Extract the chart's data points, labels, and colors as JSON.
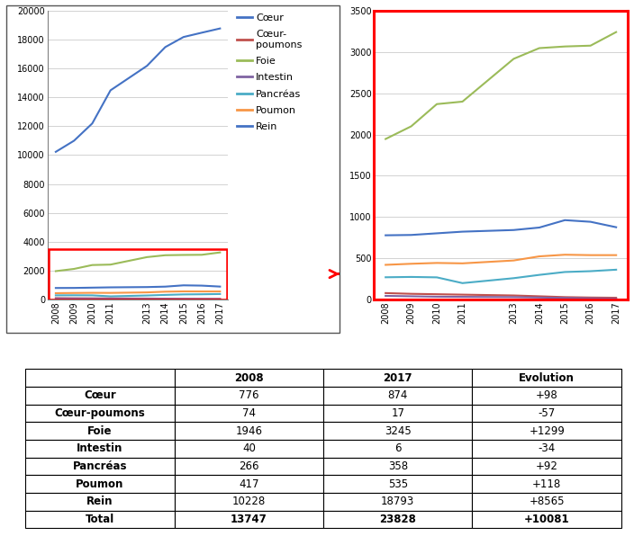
{
  "years": [
    2008,
    2009,
    2010,
    2011,
    2013,
    2014,
    2015,
    2016,
    2017
  ],
  "coeur": [
    776,
    780,
    800,
    820,
    840,
    870,
    960,
    940,
    874
  ],
  "coeur_p": [
    74,
    65,
    60,
    55,
    45,
    35,
    25,
    20,
    17
  ],
  "foie": [
    1946,
    2100,
    2370,
    2400,
    2920,
    3050,
    3070,
    3080,
    3245
  ],
  "intestin": [
    40,
    35,
    30,
    28,
    25,
    20,
    15,
    10,
    6
  ],
  "pancreas": [
    266,
    270,
    265,
    195,
    255,
    295,
    330,
    340,
    358
  ],
  "poumon": [
    417,
    430,
    440,
    435,
    470,
    520,
    540,
    535,
    535
  ],
  "rein": [
    10228,
    11000,
    12200,
    14500,
    16200,
    17500,
    18200,
    18500,
    18793
  ],
  "color_coeur": "#4472C4",
  "color_coeurp": "#C0504D",
  "color_foie": "#9BBB59",
  "color_intestin": "#8064A2",
  "color_pancreas": "#4BACC6",
  "color_poumon": "#F79646",
  "color_rein": "#4472C4",
  "main_ylim": [
    0,
    20000
  ],
  "main_yticks": [
    0,
    2000,
    4000,
    6000,
    8000,
    10000,
    12000,
    14000,
    16000,
    18000,
    20000
  ],
  "zoom_ylim": [
    0,
    3500
  ],
  "zoom_yticks": [
    0,
    500,
    1000,
    1500,
    2000,
    2500,
    3000,
    3500
  ],
  "legend_labels": [
    "Cœur",
    "Cœur-\npoumons",
    "Foie",
    "Intestin",
    "Pancréas",
    "Poumon",
    "Rein"
  ],
  "table_rows": [
    [
      "Cœur",
      "776",
      "874",
      "+98"
    ],
    [
      "Cœur-poumons",
      "74",
      "17",
      "-57"
    ],
    [
      "Foie",
      "1946",
      "3245",
      "+1299"
    ],
    [
      "Intestin",
      "40",
      "6",
      "-34"
    ],
    [
      "Pancréas",
      "266",
      "358",
      "+92"
    ],
    [
      "Poumon",
      "417",
      "535",
      "+118"
    ],
    [
      "Rein",
      "10228",
      "18793",
      "+8565"
    ],
    [
      "Total",
      "13747",
      "23828",
      "+10081"
    ]
  ],
  "table_headers": [
    "",
    "2008",
    "2017",
    "Evolution"
  ]
}
